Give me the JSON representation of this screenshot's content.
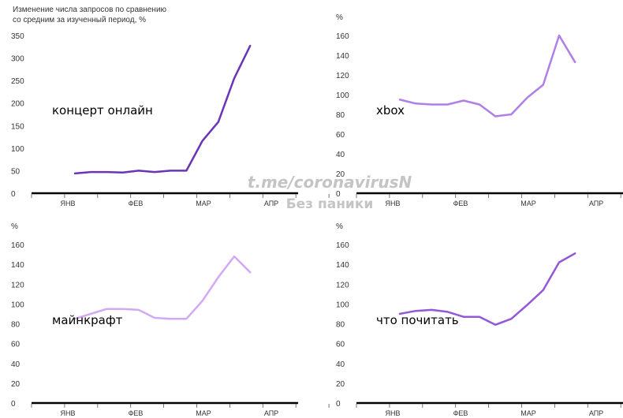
{
  "heading": {
    "line1": "Изменение числа запросов по сравнению",
    "line2": "со средним за изученный период, %"
  },
  "watermark": {
    "line1": "t.me/coronavirusN",
    "line2": "Без паники"
  },
  "x_ticks": [
    "ЯНВ",
    "ФЕВ",
    "МАР",
    "АПР"
  ],
  "chart_data": [
    {
      "type": "line",
      "label": "концерт онлайн",
      "unit": "",
      "color": "#6a34b6",
      "ylim": [
        0,
        350
      ],
      "yticks": [
        0,
        50,
        100,
        150,
        200,
        250,
        300,
        350
      ],
      "x": [
        1,
        2,
        3,
        4,
        5,
        6,
        7,
        8,
        9,
        10,
        11,
        12,
        13
      ],
      "values": [
        44,
        47,
        47,
        46,
        50,
        47,
        50,
        50,
        116,
        158,
        255,
        327,
        null
      ]
    },
    {
      "type": "line",
      "label": "xbox",
      "unit": "%",
      "color": "#b07ee6",
      "ylim": [
        0,
        160
      ],
      "yticks": [
        0,
        20,
        40,
        60,
        80,
        100,
        120,
        140,
        160
      ],
      "x": [
        1,
        2,
        3,
        4,
        5,
        6,
        7,
        8,
        9,
        10,
        11,
        12,
        13
      ],
      "values": [
        95,
        91,
        90,
        90,
        94,
        90,
        78,
        80,
        97,
        110,
        160,
        133,
        null
      ]
    },
    {
      "type": "line",
      "label": "майнкрафт",
      "unit": "%",
      "color": "#d3a8f4",
      "ylim": [
        0,
        160
      ],
      "yticks": [
        0,
        20,
        40,
        60,
        80,
        100,
        120,
        140,
        160
      ],
      "x": [
        1,
        2,
        3,
        4,
        5,
        6,
        7,
        8,
        9,
        10,
        11,
        12,
        13
      ],
      "values": [
        85,
        90,
        95,
        95,
        94,
        86,
        85,
        85,
        103,
        127,
        148,
        132,
        null
      ]
    },
    {
      "type": "line",
      "label": "что почитать",
      "unit": "%",
      "color": "#9457d8",
      "ylim": [
        0,
        160
      ],
      "yticks": [
        0,
        20,
        40,
        60,
        80,
        100,
        120,
        140,
        160
      ],
      "x": [
        1,
        2,
        3,
        4,
        5,
        6,
        7,
        8,
        9,
        10,
        11,
        12,
        13
      ],
      "values": [
        90,
        93,
        94,
        92,
        87,
        87,
        79,
        85,
        99,
        114,
        142,
        151,
        null
      ]
    }
  ]
}
